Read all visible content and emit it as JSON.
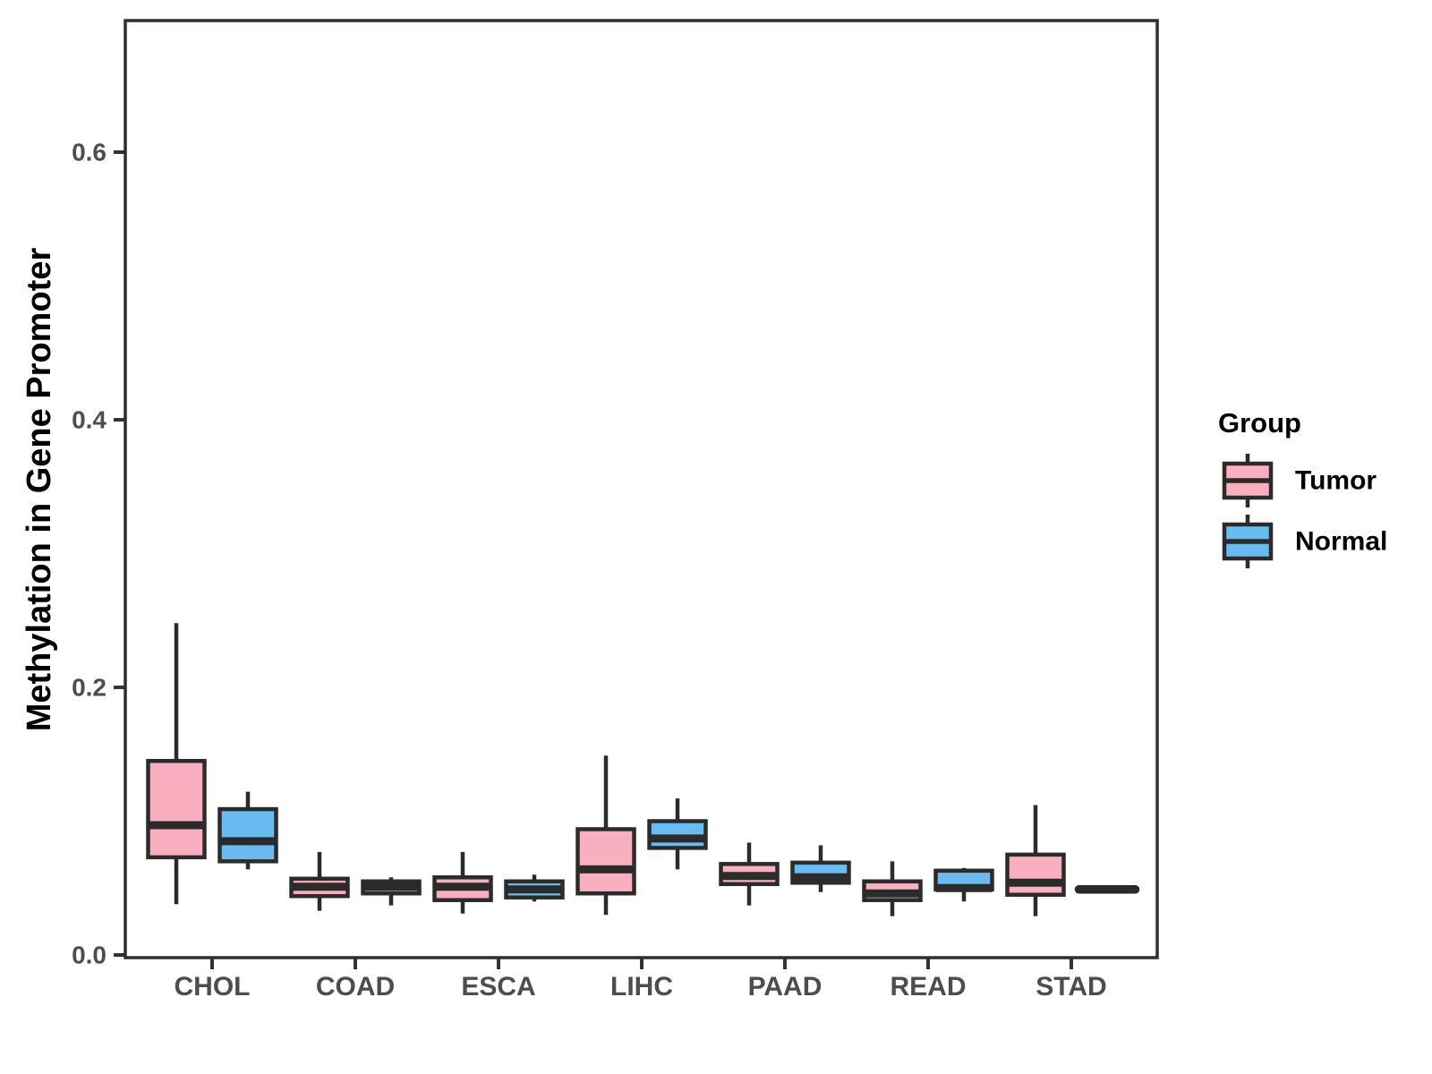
{
  "figure": {
    "background": "#FFFFFF",
    "y_axis": {
      "title": "Methylation in Gene Promoter",
      "tick_labels": [
        "0.0",
        "0.2",
        "0.4",
        "0.6"
      ],
      "tick_values": [
        0,
        0.2,
        0.4,
        0.6
      ]
    },
    "x_axis": {
      "categories": [
        "CHOL",
        "COAD",
        "ESCA",
        "LIHC",
        "PAAD",
        "READ",
        "STAD"
      ]
    },
    "legend": {
      "title": "Group",
      "entries": [
        {
          "label": "Tumor",
          "color": "#F9AFBF"
        },
        {
          "label": "Normal",
          "color": "#69BCF2"
        }
      ]
    },
    "colors": {
      "box_stroke": "#2B2B2B",
      "panel_border": "#2E2E2E",
      "tick_mark": "#333333",
      "axis_text": "#4D4D4D",
      "title_text": "#000000"
    }
  },
  "chart_data": {
    "type": "boxplot",
    "title": "",
    "xlabel": "",
    "ylabel": "Methylation in Gene Promoter",
    "ylim": [
      0,
      0.7
    ],
    "yticks": [
      0,
      0.2,
      0.4,
      0.6
    ],
    "grid": false,
    "legend_position": "right",
    "categories": [
      "CHOL",
      "COAD",
      "ESCA",
      "LIHC",
      "PAAD",
      "READ",
      "STAD"
    ],
    "series": [
      {
        "name": "Tumor",
        "color": "#F9AFBF",
        "boxes": [
          {
            "category": "CHOL",
            "whisker_low": 0.038,
            "q1": 0.073,
            "median": 0.097,
            "q3": 0.145,
            "whisker_high": 0.248
          },
          {
            "category": "COAD",
            "whisker_low": 0.033,
            "q1": 0.044,
            "median": 0.051,
            "q3": 0.057,
            "whisker_high": 0.077
          },
          {
            "category": "ESCA",
            "whisker_low": 0.031,
            "q1": 0.041,
            "median": 0.051,
            "q3": 0.058,
            "whisker_high": 0.077
          },
          {
            "category": "LIHC",
            "whisker_low": 0.03,
            "q1": 0.046,
            "median": 0.064,
            "q3": 0.094,
            "whisker_high": 0.149
          },
          {
            "category": "PAAD",
            "whisker_low": 0.037,
            "q1": 0.053,
            "median": 0.059,
            "q3": 0.068,
            "whisker_high": 0.084
          },
          {
            "category": "READ",
            "whisker_low": 0.029,
            "q1": 0.041,
            "median": 0.046,
            "q3": 0.055,
            "whisker_high": 0.07
          },
          {
            "category": "STAD",
            "whisker_low": 0.029,
            "q1": 0.045,
            "median": 0.054,
            "q3": 0.075,
            "whisker_high": 0.112
          }
        ]
      },
      {
        "name": "Normal",
        "color": "#69BCF2",
        "boxes": [
          {
            "category": "CHOL",
            "whisker_low": 0.064,
            "q1": 0.07,
            "median": 0.085,
            "q3": 0.109,
            "whisker_high": 0.122
          },
          {
            "category": "COAD",
            "whisker_low": 0.037,
            "q1": 0.046,
            "median": 0.051,
            "q3": 0.055,
            "whisker_high": 0.058
          },
          {
            "category": "ESCA",
            "whisker_low": 0.04,
            "q1": 0.043,
            "median": 0.049,
            "q3": 0.055,
            "whisker_high": 0.06
          },
          {
            "category": "LIHC",
            "whisker_low": 0.064,
            "q1": 0.08,
            "median": 0.087,
            "q3": 0.1,
            "whisker_high": 0.117
          },
          {
            "category": "PAAD",
            "whisker_low": 0.047,
            "q1": 0.054,
            "median": 0.058,
            "q3": 0.069,
            "whisker_high": 0.082
          },
          {
            "category": "READ",
            "whisker_low": 0.04,
            "q1": 0.049,
            "median": 0.05,
            "q3": 0.063,
            "whisker_high": 0.065
          },
          {
            "category": "STAD",
            "whisker_low": 0.049,
            "q1": 0.049,
            "median": 0.049,
            "q3": 0.049,
            "whisker_high": 0.049
          }
        ]
      }
    ]
  }
}
